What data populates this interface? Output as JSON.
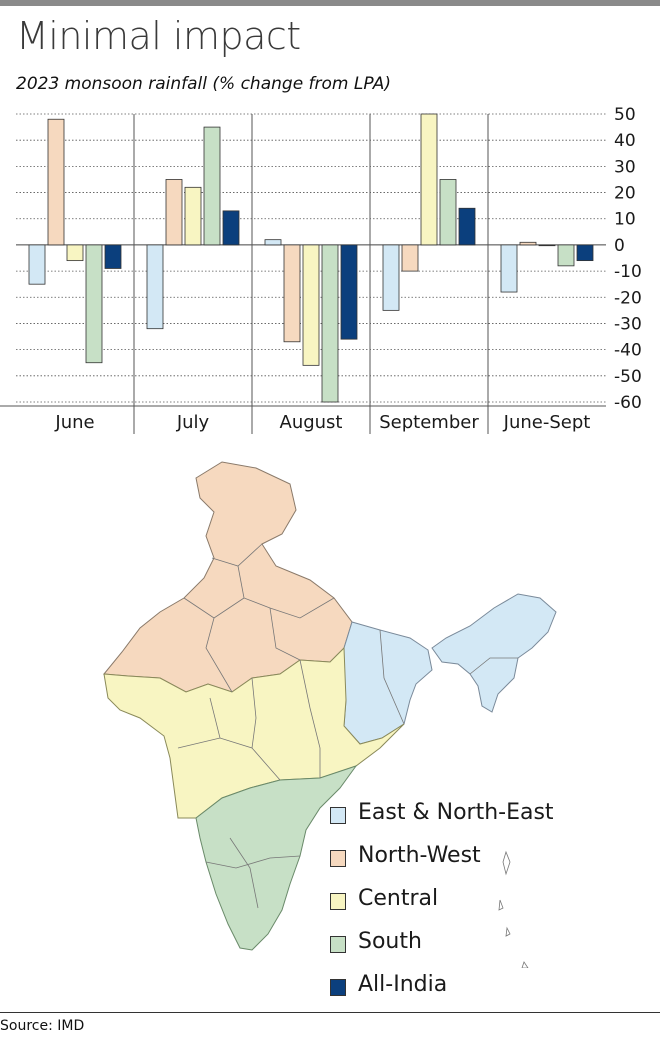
{
  "title": "Minimal impact",
  "subtitle": "2023 monsoon rainfall (% change from LPA)",
  "source": "Source: IMD",
  "colors": {
    "East & North-East": "#d3e8f5",
    "North-West": "#f6d9bf",
    "Central": "#f8f5c2",
    "South": "#c7e0c6",
    "All-India": "#0b3f7d"
  },
  "legend": [
    {
      "label": "East & North-East",
      "color": "#d3e8f5"
    },
    {
      "label": "North-West",
      "color": "#f6d9bf"
    },
    {
      "label": "Central",
      "color": "#f8f5c2"
    },
    {
      "label": "South",
      "color": "#c7e0c6"
    },
    {
      "label": "All-India",
      "color": "#0b3f7d"
    }
  ],
  "chart_data": {
    "type": "bar",
    "title": "Minimal impact",
    "subtitle": "2023 monsoon rainfall (% change from LPA)",
    "categories": [
      "June",
      "July",
      "August",
      "September",
      "June-Sept"
    ],
    "series": [
      {
        "name": "East & North-East",
        "values": [
          -15,
          -32,
          2,
          -25,
          -18
        ]
      },
      {
        "name": "North-West",
        "values": [
          48,
          25,
          -37,
          -10,
          1
        ]
      },
      {
        "name": "Central",
        "values": [
          -6,
          22,
          -46,
          50,
          0
        ]
      },
      {
        "name": "South",
        "values": [
          -45,
          45,
          -60,
          25,
          -8
        ]
      },
      {
        "name": "All-India",
        "values": [
          -9,
          13,
          -36,
          14,
          -6
        ]
      }
    ],
    "ylim": [
      -60,
      50
    ],
    "yticks": [
      50,
      40,
      30,
      20,
      10,
      0,
      -10,
      -20,
      -30,
      -40,
      -50,
      -60
    ],
    "ytick_labels": [
      "50",
      "40",
      "30",
      "20",
      "10",
      "0",
      "-10",
      "-20",
      "-30",
      "-40",
      "-50",
      "-60"
    ],
    "grid": "horizontal dotted",
    "legend_position": "bottom-right",
    "xlabel": "",
    "ylabel": ""
  }
}
